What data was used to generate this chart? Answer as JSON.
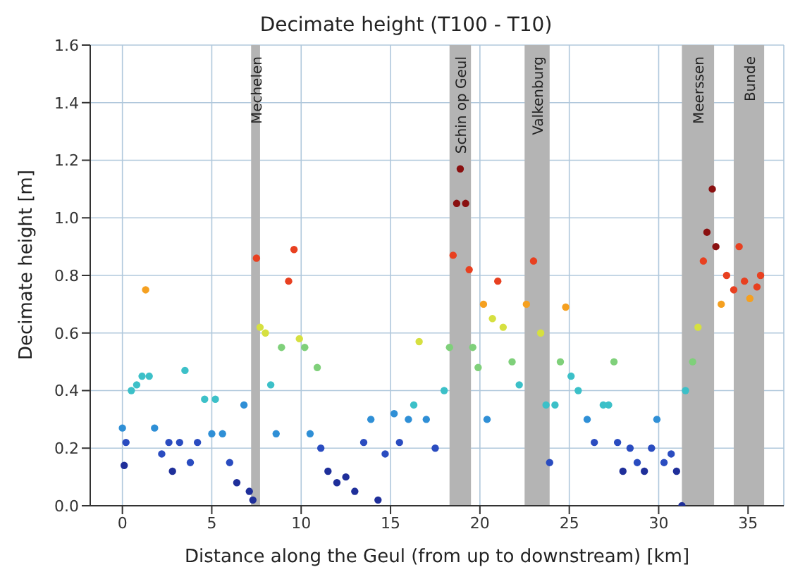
{
  "chart_data": {
    "type": "scatter",
    "title": "Decimate height (T100 - T10)",
    "xlabel": "Distance along the Geul (from up to downstream) [km]",
    "ylabel": "Decimate height [m]",
    "xlim": [
      -1.8,
      37
    ],
    "xticks": [
      0,
      5,
      10,
      15,
      20,
      25,
      30,
      35
    ],
    "ylim": [
      0,
      1.6
    ],
    "yticks": [
      {
        "value": 0,
        "label": "0.0"
      },
      {
        "value": 0.2,
        "label": "0.2"
      },
      {
        "value": 0.4,
        "label": "0.4"
      },
      {
        "value": 0.6,
        "label": "0.6"
      },
      {
        "value": 0.8,
        "label": "0.8"
      },
      {
        "value": 1.0,
        "label": "1.0"
      },
      {
        "value": 1.2,
        "label": "1.2"
      },
      {
        "value": 1.4,
        "label": "1.4"
      },
      {
        "value": 1.6,
        "label": "1.6"
      }
    ],
    "grid": true,
    "legend": false,
    "marker": "circle",
    "bands": [
      {
        "axis": "x",
        "from": 7.2,
        "to": 7.7,
        "label": "Mechelen",
        "color": "#b4b4b4"
      },
      {
        "axis": "x",
        "from": 18.3,
        "to": 19.5,
        "label": "Schin op Geul",
        "color": "#b4b4b4"
      },
      {
        "axis": "x",
        "from": 22.5,
        "to": 23.9,
        "label": "Valkenburg",
        "color": "#b4b4b4"
      },
      {
        "axis": "x",
        "from": 31.3,
        "to": 33.1,
        "label": "Meerssen",
        "color": "#b4b4b4"
      },
      {
        "axis": "x",
        "from": 34.2,
        "to": 35.9,
        "label": "Bunde",
        "color": "#b4b4b4"
      }
    ],
    "x": [
      0,
      0.1,
      0.2,
      0.5,
      0.8,
      1.1,
      1.3,
      1.5,
      1.8,
      2.2,
      2.6,
      2.8,
      3.2,
      3.5,
      3.8,
      4.2,
      4.6,
      5.0,
      5.2,
      5.6,
      6.0,
      6.4,
      6.8,
      7.1,
      7.3,
      7.5,
      7.7,
      8.0,
      8.3,
      8.6,
      8.9,
      9.3,
      9.6,
      9.9,
      10.2,
      10.5,
      10.9,
      11.1,
      11.5,
      12.0,
      12.5,
      13.0,
      13.5,
      13.9,
      14.3,
      14.7,
      15.2,
      15.5,
      16.0,
      16.3,
      16.6,
      17.0,
      17.5,
      18.0,
      18.3,
      18.5,
      18.7,
      18.9,
      19.2,
      19.4,
      19.6,
      19.9,
      20.2,
      20.4,
      20.7,
      21.0,
      21.3,
      21.8,
      22.2,
      22.6,
      23.0,
      23.4,
      23.7,
      23.9,
      24.2,
      24.5,
      24.8,
      25.1,
      25.5,
      26.0,
      26.4,
      26.9,
      27.2,
      27.5,
      27.7,
      28.0,
      28.4,
      28.8,
      29.2,
      29.6,
      29.9,
      30.3,
      30.7,
      31.0,
      31.3,
      31.5,
      31.9,
      32.2,
      32.5,
      32.7,
      33.0,
      33.2,
      33.5,
      33.8,
      34.2,
      34.5,
      34.8,
      35.1,
      35.5,
      35.7
    ],
    "values": [
      0.27,
      0.14,
      0.22,
      0.4,
      0.42,
      0.45,
      0.75,
      0.45,
      0.27,
      0.18,
      0.22,
      0.12,
      0.22,
      0.47,
      0.15,
      0.22,
      0.37,
      0.25,
      0.37,
      0.25,
      0.15,
      0.08,
      0.35,
      0.05,
      0.02,
      0.86,
      0.62,
      0.6,
      0.42,
      0.25,
      0.55,
      0.78,
      0.89,
      0.58,
      0.55,
      0.25,
      0.48,
      0.2,
      0.12,
      0.08,
      0.1,
      0.05,
      0.22,
      0.3,
      0.02,
      0.18,
      0.32,
      0.22,
      0.3,
      0.35,
      0.57,
      0.3,
      0.2,
      0.4,
      0.55,
      0.87,
      1.05,
      1.17,
      1.05,
      0.82,
      0.55,
      0.48,
      0.7,
      0.3,
      0.65,
      0.78,
      0.62,
      0.5,
      0.42,
      0.7,
      0.85,
      0.6,
      0.35,
      0.15,
      0.35,
      0.5,
      0.69,
      0.45,
      0.4,
      0.3,
      0.22,
      0.35,
      0.35,
      0.5,
      0.22,
      0.12,
      0.2,
      0.15,
      0.12,
      0.2,
      0.3,
      0.15,
      0.18,
      0.12,
      0.0,
      0.4,
      0.5,
      0.62,
      0.85,
      0.95,
      1.1,
      0.9,
      0.7,
      0.8,
      0.75,
      0.9,
      0.78,
      0.72,
      0.76,
      0.8
    ],
    "colors": [
      "#2f8fd6",
      "#1f2f9a",
      "#2a4cc0",
      "#3cc0c8",
      "#3cc0c8",
      "#3cc0c8",
      "#f5a020",
      "#3cc0c8",
      "#2f8fd6",
      "#2a4cc0",
      "#2a4cc0",
      "#1f2f9a",
      "#2a4cc0",
      "#3cc0c8",
      "#2a4cc0",
      "#2a4cc0",
      "#3cc0c8",
      "#2f8fd6",
      "#3cc0c8",
      "#2f8fd6",
      "#2a4cc0",
      "#1f2f9a",
      "#2f8fd6",
      "#1f2f9a",
      "#1f2f9a",
      "#e84020",
      "#d6e040",
      "#d6e040",
      "#3cc0c8",
      "#2f8fd6",
      "#7fd07a",
      "#e84020",
      "#e84020",
      "#d6e040",
      "#7fd07a",
      "#2f8fd6",
      "#7fd07a",
      "#2a4cc0",
      "#1f2f9a",
      "#1f2f9a",
      "#1f2f9a",
      "#1f2f9a",
      "#2a4cc0",
      "#2f8fd6",
      "#1f2f9a",
      "#2a4cc0",
      "#2f8fd6",
      "#2a4cc0",
      "#2f8fd6",
      "#3cc0c8",
      "#d6e040",
      "#2f8fd6",
      "#2a4cc0",
      "#3cc0c8",
      "#7fd07a",
      "#e84020",
      "#8a1010",
      "#8a1010",
      "#8a1010",
      "#e84020",
      "#7fd07a",
      "#7fd07a",
      "#f5a020",
      "#2f8fd6",
      "#d6e040",
      "#e84020",
      "#d6e040",
      "#7fd07a",
      "#3cc0c8",
      "#f5a020",
      "#e84020",
      "#d6e040",
      "#3cc0c8",
      "#2a4cc0",
      "#3cc0c8",
      "#7fd07a",
      "#f5a020",
      "#3cc0c8",
      "#3cc0c8",
      "#2f8fd6",
      "#2a4cc0",
      "#3cc0c8",
      "#3cc0c8",
      "#7fd07a",
      "#2a4cc0",
      "#1f2f9a",
      "#2a4cc0",
      "#2a4cc0",
      "#1f2f9a",
      "#2a4cc0",
      "#2f8fd6",
      "#2a4cc0",
      "#2a4cc0",
      "#1f2f9a",
      "#1f2f9a",
      "#3cc0c8",
      "#7fd07a",
      "#d6e040",
      "#e84020",
      "#8a1010",
      "#8a1010",
      "#8a1010",
      "#f5a020",
      "#e84020",
      "#e84020",
      "#e84020",
      "#e84020",
      "#f5a020",
      "#e84020",
      "#e84020"
    ]
  }
}
